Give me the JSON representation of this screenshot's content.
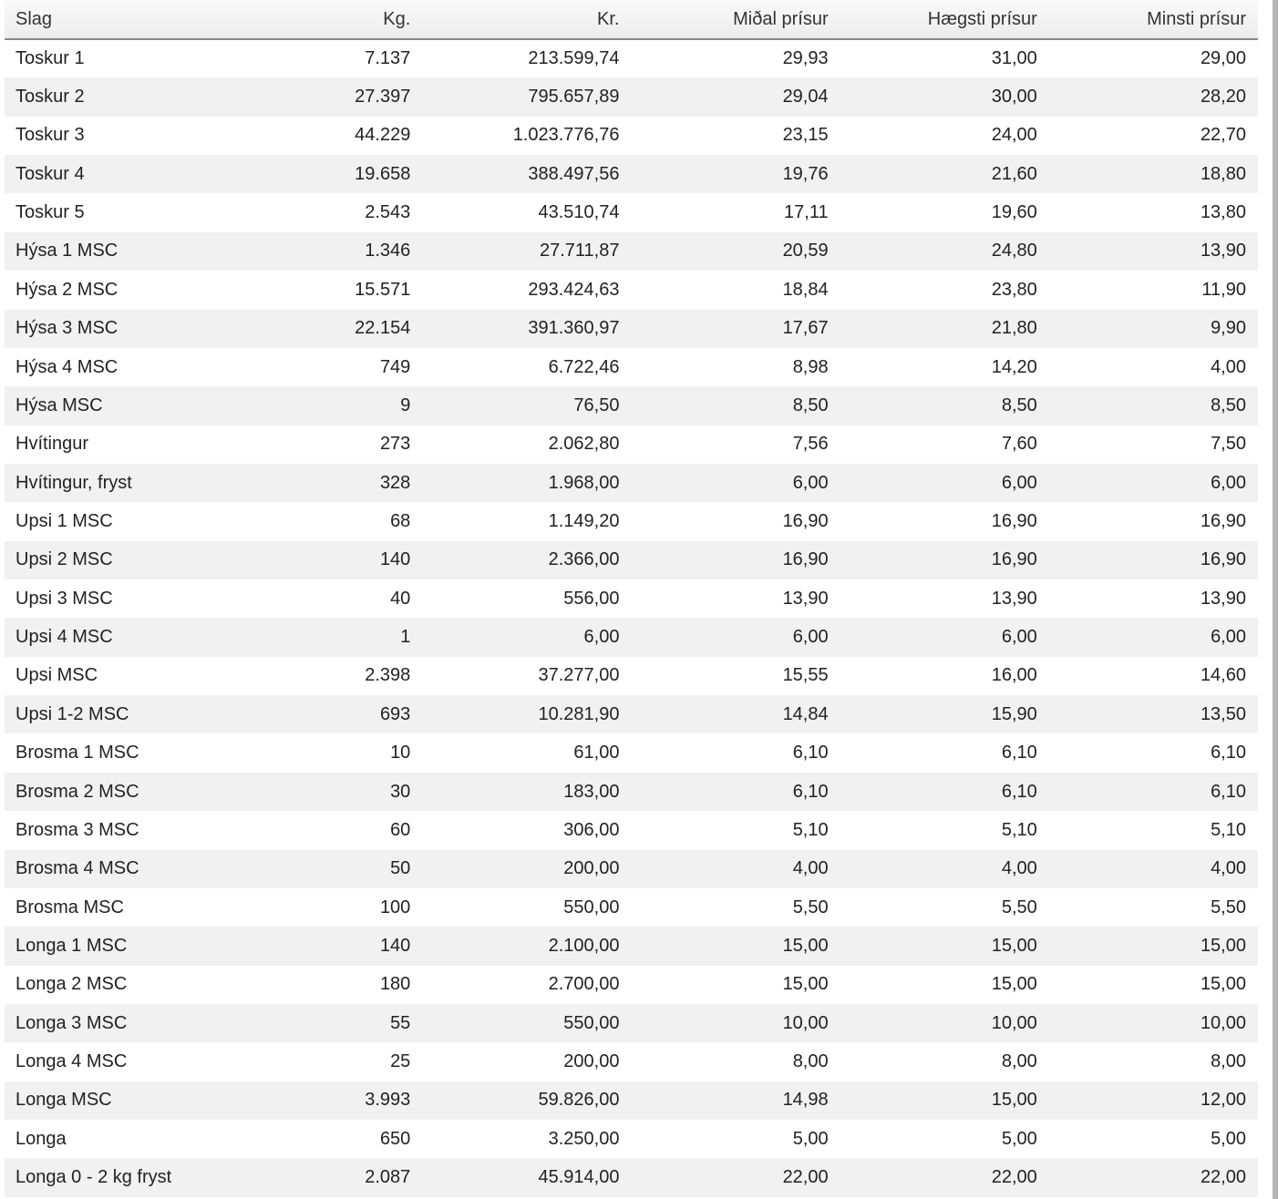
{
  "table": {
    "headers": [
      "Slag",
      "Kg.",
      "Kr.",
      "Miðal prísur",
      "Hægsti prísur",
      "Minsti prísur"
    ],
    "rows": [
      [
        "Toskur 1",
        "7.137",
        "213.599,74",
        "29,93",
        "31,00",
        "29,00"
      ],
      [
        "Toskur 2",
        "27.397",
        "795.657,89",
        "29,04",
        "30,00",
        "28,20"
      ],
      [
        "Toskur 3",
        "44.229",
        "1.023.776,76",
        "23,15",
        "24,00",
        "22,70"
      ],
      [
        "Toskur 4",
        "19.658",
        "388.497,56",
        "19,76",
        "21,60",
        "18,80"
      ],
      [
        "Toskur 5",
        "2.543",
        "43.510,74",
        "17,11",
        "19,60",
        "13,80"
      ],
      [
        "Hýsa 1 MSC",
        "1.346",
        "27.711,87",
        "20,59",
        "24,80",
        "13,90"
      ],
      [
        "Hýsa 2 MSC",
        "15.571",
        "293.424,63",
        "18,84",
        "23,80",
        "11,90"
      ],
      [
        "Hýsa 3 MSC",
        "22.154",
        "391.360,97",
        "17,67",
        "21,80",
        "9,90"
      ],
      [
        "Hýsa 4 MSC",
        "749",
        "6.722,46",
        "8,98",
        "14,20",
        "4,00"
      ],
      [
        "Hýsa MSC",
        "9",
        "76,50",
        "8,50",
        "8,50",
        "8,50"
      ],
      [
        "Hvítingur",
        "273",
        "2.062,80",
        "7,56",
        "7,60",
        "7,50"
      ],
      [
        "Hvítingur, fryst",
        "328",
        "1.968,00",
        "6,00",
        "6,00",
        "6,00"
      ],
      [
        "Upsi 1 MSC",
        "68",
        "1.149,20",
        "16,90",
        "16,90",
        "16,90"
      ],
      [
        "Upsi 2 MSC",
        "140",
        "2.366,00",
        "16,90",
        "16,90",
        "16,90"
      ],
      [
        "Upsi 3 MSC",
        "40",
        "556,00",
        "13,90",
        "13,90",
        "13,90"
      ],
      [
        "Upsi 4 MSC",
        "1",
        "6,00",
        "6,00",
        "6,00",
        "6,00"
      ],
      [
        "Upsi MSC",
        "2.398",
        "37.277,00",
        "15,55",
        "16,00",
        "14,60"
      ],
      [
        "Upsi 1-2 MSC",
        "693",
        "10.281,90",
        "14,84",
        "15,90",
        "13,50"
      ],
      [
        "Brosma 1 MSC",
        "10",
        "61,00",
        "6,10",
        "6,10",
        "6,10"
      ],
      [
        "Brosma 2 MSC",
        "30",
        "183,00",
        "6,10",
        "6,10",
        "6,10"
      ],
      [
        "Brosma 3 MSC",
        "60",
        "306,00",
        "5,10",
        "5,10",
        "5,10"
      ],
      [
        "Brosma 4 MSC",
        "50",
        "200,00",
        "4,00",
        "4,00",
        "4,00"
      ],
      [
        "Brosma MSC",
        "100",
        "550,00",
        "5,50",
        "5,50",
        "5,50"
      ],
      [
        "Longa 1 MSC",
        "140",
        "2.100,00",
        "15,00",
        "15,00",
        "15,00"
      ],
      [
        "Longa 2 MSC",
        "180",
        "2.700,00",
        "15,00",
        "15,00",
        "15,00"
      ],
      [
        "Longa 3 MSC",
        "55",
        "550,00",
        "10,00",
        "10,00",
        "10,00"
      ],
      [
        "Longa 4 MSC",
        "25",
        "200,00",
        "8,00",
        "8,00",
        "8,00"
      ],
      [
        "Longa MSC",
        "3.993",
        "59.826,00",
        "14,98",
        "15,00",
        "12,00"
      ],
      [
        "Longa",
        "650",
        "3.250,00",
        "5,00",
        "5,00",
        "5,00"
      ],
      [
        "Longa 0 - 2 kg fryst",
        "2.087",
        "45.914,00",
        "22,00",
        "22,00",
        "22,00"
      ]
    ]
  }
}
